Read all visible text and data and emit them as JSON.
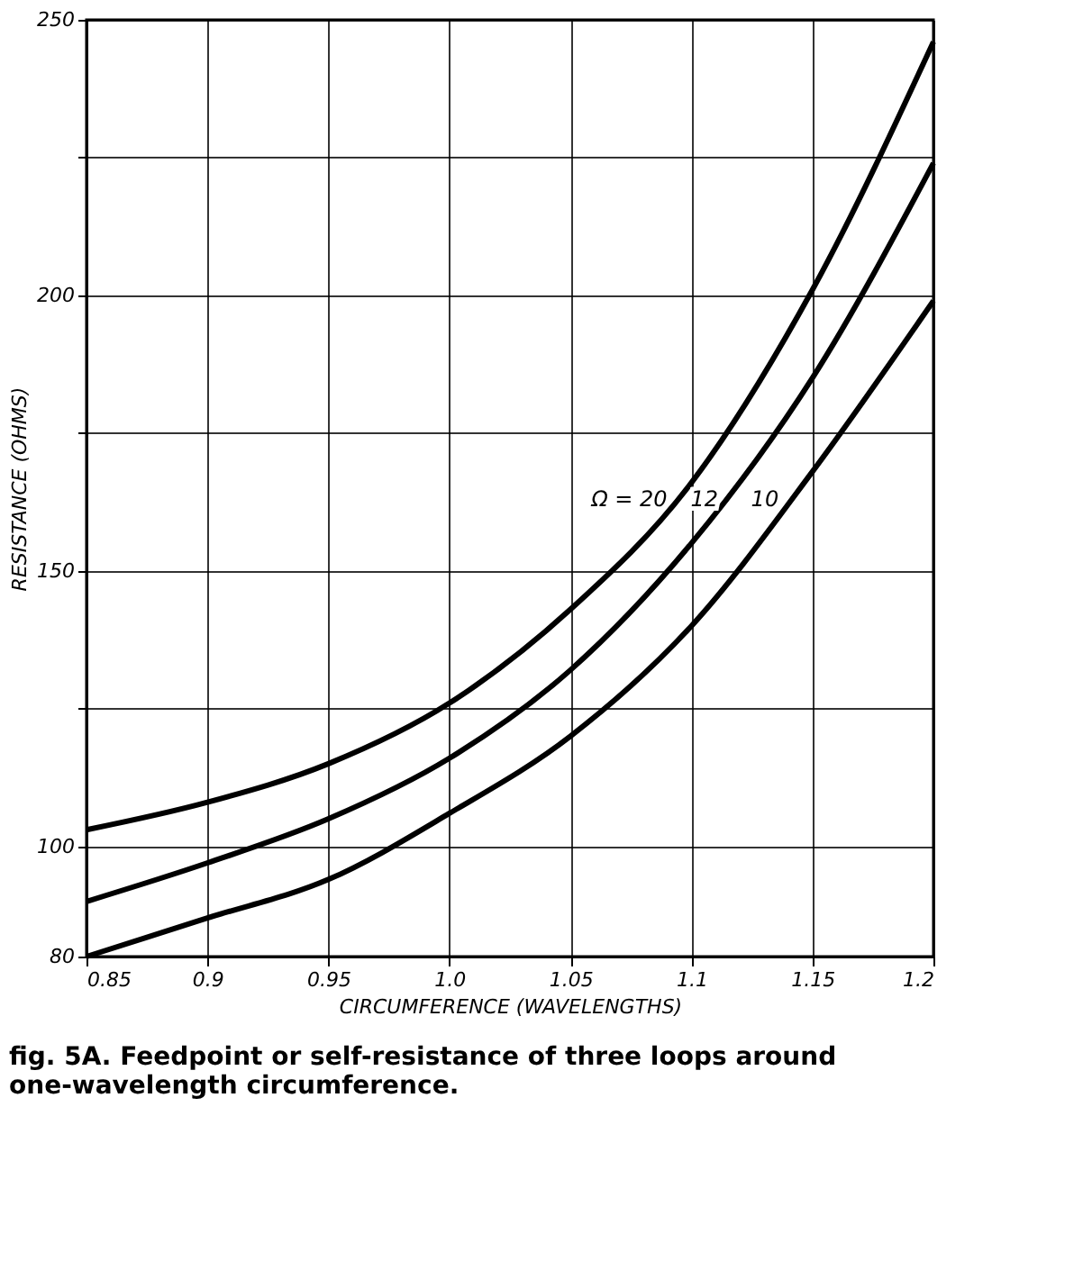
{
  "chart_data": {
    "type": "line",
    "xlabel": "CIRCUMFERENCE (WAVELENGTHS)",
    "ylabel": "RESISTANCE (OHMS)",
    "x": [
      0.85,
      0.9,
      0.95,
      1.0,
      1.05,
      1.1,
      1.15,
      1.2
    ],
    "series": [
      {
        "color": "#000000",
        "values": [
          103,
          108,
          115,
          126,
          143,
          166,
          201,
          246
        ]
      },
      {
        "color": "#000000",
        "values": [
          90,
          97,
          105,
          116,
          132,
          155,
          185,
          224
        ]
      },
      {
        "color": "#000000",
        "values": [
          80,
          87,
          94,
          106,
          120,
          140,
          168,
          199
        ]
      }
    ],
    "xlim": [
      0.85,
      1.2
    ],
    "ylim": [
      80,
      250
    ],
    "xticks": [
      0.85,
      0.9,
      0.95,
      {
        "value": 1.0,
        "label": "1.0"
      },
      1.05,
      1.1,
      1.15,
      1.2
    ],
    "yticks": [
      80,
      100,
      {
        "value": 125,
        "label": null
      },
      150,
      {
        "value": 175,
        "label": null
      },
      200,
      {
        "value": 225,
        "label": null
      },
      250
    ],
    "grid": true,
    "line_style": "solid",
    "marker": "none",
    "annotations": [
      {
        "text": "Ω = 20",
        "x": 1.093,
        "y": 163
      },
      {
        "text": "12",
        "x": 1.114,
        "y": 163
      },
      {
        "text": "10",
        "x": 1.139,
        "y": 163
      },
      "fig. 5A. Feedpoint or self-resistance of three loops around one-wavelength circumference."
    ]
  }
}
